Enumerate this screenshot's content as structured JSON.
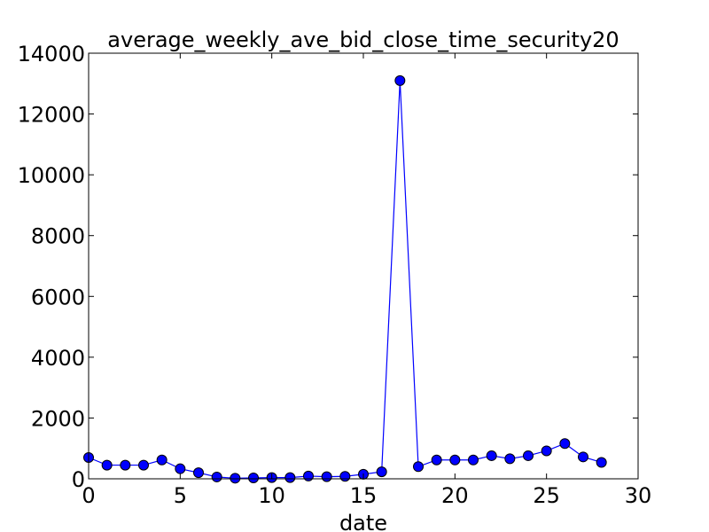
{
  "chart_data": {
    "type": "line",
    "title": "average_weekly_ave_bid_close_time_security20",
    "xlabel": "date",
    "ylabel": "",
    "xlim": [
      0,
      30
    ],
    "ylim": [
      0,
      14000
    ],
    "x_ticks": [
      0,
      5,
      10,
      15,
      20,
      25,
      30
    ],
    "y_ticks": [
      0,
      2000,
      4000,
      6000,
      8000,
      10000,
      12000,
      14000
    ],
    "grid": false,
    "colors": {
      "series": "#0000ff",
      "axes": "#000000"
    },
    "series": [
      {
        "x": [
          0,
          1,
          2,
          3,
          4,
          5,
          6,
          7,
          8,
          9,
          10,
          11,
          12,
          13,
          14,
          15,
          16,
          17,
          18,
          19,
          20,
          21,
          22,
          23,
          24,
          25,
          26,
          27,
          28
        ],
        "values": [
          700,
          450,
          450,
          450,
          620,
          330,
          200,
          60,
          20,
          30,
          40,
          40,
          90,
          70,
          80,
          150,
          230,
          13100,
          400,
          620,
          620,
          620,
          760,
          660,
          760,
          920,
          1160,
          720,
          540
        ]
      }
    ]
  }
}
